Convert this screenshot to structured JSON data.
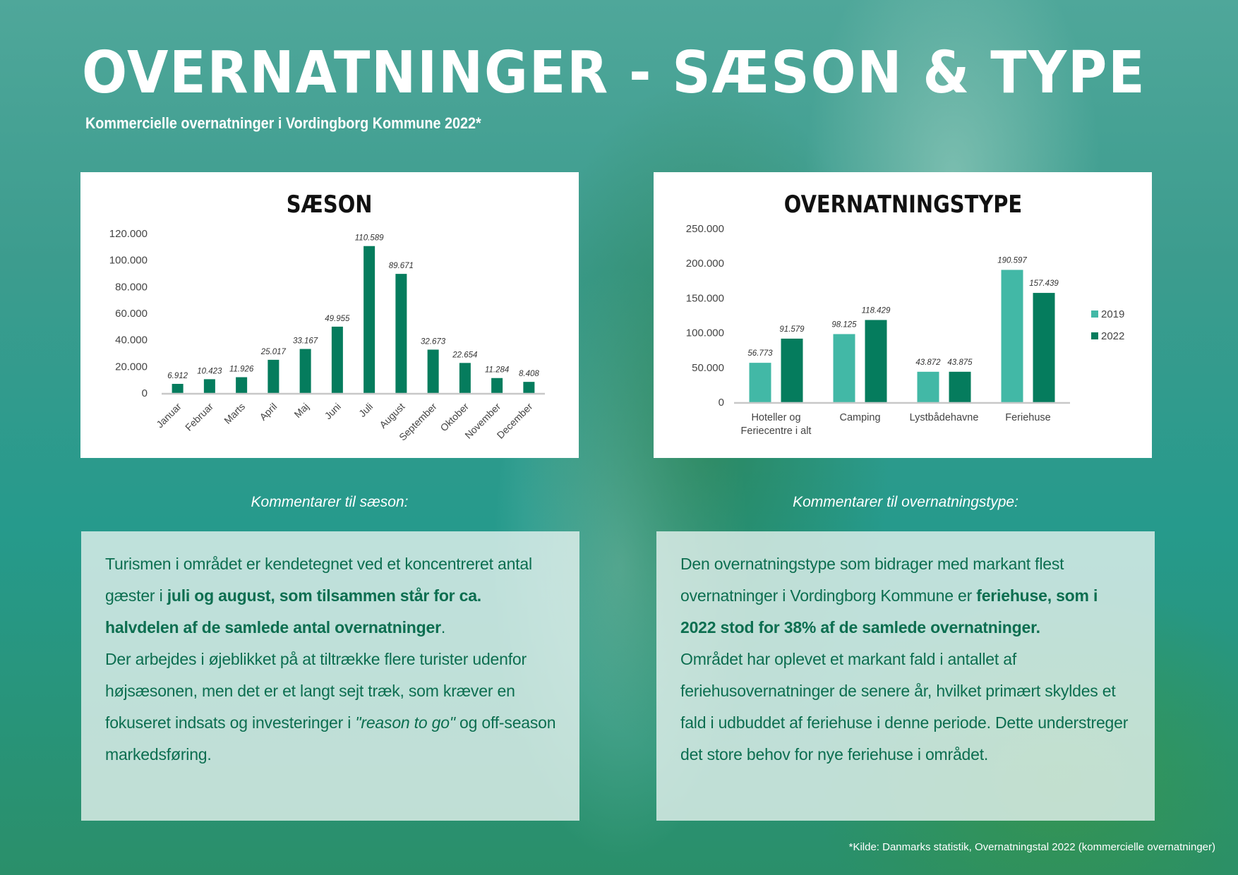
{
  "header": {
    "title": "OVERNATNINGER - SÆSON & TYPE",
    "subtitle": "Kommercielle overnatninger i Vordingborg Kommune 2022*"
  },
  "chart_data": [
    {
      "type": "bar",
      "title": "SÆSON",
      "categories": [
        "Januar",
        "Februar",
        "Marts",
        "April",
        "Maj",
        "Juni",
        "Juli",
        "August",
        "September",
        "Oktober",
        "November",
        "December"
      ],
      "values": [
        6912,
        10423,
        11926,
        25017,
        33167,
        49955,
        110589,
        89671,
        32673,
        22654,
        11284,
        8408
      ],
      "value_labels": [
        "6.912",
        "10.423",
        "11.926",
        "25.017",
        "33.167",
        "49.955",
        "110.589",
        "89.671",
        "32.673",
        "22.654",
        "11.284",
        "8.408"
      ],
      "yticks": [
        "0",
        "20.000",
        "40.000",
        "60.000",
        "80.000",
        "100.000",
        "120.000"
      ],
      "ylim": [
        0,
        120000
      ],
      "color": "#057c5d"
    },
    {
      "type": "bar",
      "title": "OVERNATNINGSTYPE",
      "categories": [
        [
          "Hoteller og",
          "Feriecentre i alt"
        ],
        [
          "Camping"
        ],
        [
          "Lystbådehavne"
        ],
        [
          "Feriehuse"
        ]
      ],
      "series": [
        {
          "name": "2019",
          "values": [
            56773,
            98125,
            43872,
            190597
          ],
          "labels": [
            "56.773",
            "98.125",
            "43.872",
            "190.597"
          ],
          "color": "#42b8a6"
        },
        {
          "name": "2022",
          "values": [
            91579,
            118429,
            43875,
            157439
          ],
          "labels": [
            "91.579",
            "118.429",
            "43.875",
            "157.439"
          ],
          "color": "#057c5d"
        }
      ],
      "yticks": [
        "0",
        "50.000",
        "100.000",
        "150.000",
        "200.000",
        "250.000"
      ],
      "ylim": [
        0,
        250000
      ],
      "legend": "right"
    }
  ],
  "comments": {
    "season_label": "Kommentarer til sæson:",
    "type_label": "Kommentarer til overnatningstype:",
    "season": [
      {
        "t": "Turismen i området er kendetegnet ved et koncentreret antal gæster i "
      },
      {
        "t": "juli og august, som tilsammen står for ca. halvdelen af de samlede antal overnatninger",
        "b": true
      },
      {
        "t": "."
      },
      {
        "br": true
      },
      {
        "t": "Der arbejdes i øjeblikket på at tiltrække flere turister udenfor højsæsonen, men det er et langt sejt træk, som kræver en fokuseret indsats og investeringer i "
      },
      {
        "t": "\"reason to go\"",
        "i": true
      },
      {
        "t": " og off-season markedsføring."
      }
    ],
    "type": [
      {
        "t": "Den overnatningstype som bidrager med markant flest overnatninger i Vordingborg Kommune er "
      },
      {
        "t": "feriehuse, som i 2022 stod for 38% af de samlede overnatninger.",
        "b": true
      },
      {
        "br": true
      },
      {
        "t": "Området har oplevet et markant fald i antallet af feriehusovernatninger de senere år, hvilket primært skyldes et fald i udbuddet af feriehuse i denne periode. Dette understreger det store behov for nye feriehuse i området."
      }
    ]
  },
  "footer": "*Kilde: Danmarks statistik, Overnatningstal 2022 (kommercielle overnatninger)"
}
